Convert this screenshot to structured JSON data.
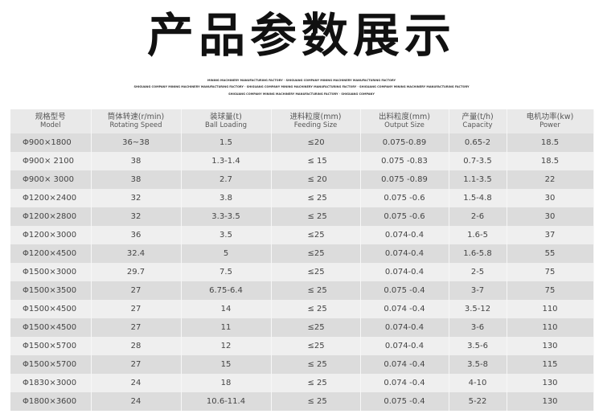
{
  "title": "产品参数展示",
  "tagline": [
    "MINING MACHINERY MANUFACTURING FACTORY · SHIGUANG COMPANY MINING MACHINERY MANUFACTURING FACTORY",
    "SHIGUANG COMPANY MINING MACHINERY MANUFACTURING FACTORY · SHIGUANG COMPANY MINING MACHINERY MANUFACTURING FACTORY · SHIGUANG COMPANY MINING MACHINERY MANUFACTURING FACTORY",
    "SHIGUANG COMPANY MINING MACHINERY MANUFACTURING FACTORY · SHIGUANG COMPANY"
  ],
  "headers": [
    {
      "cn": "规格型号",
      "en": "Model"
    },
    {
      "cn": "筒体转速(r/min)",
      "en": "Rotating Speed"
    },
    {
      "cn": "装球量(t)",
      "en": "Ball Loading"
    },
    {
      "cn": "进料粒度(mm)",
      "en": "Feeding Size"
    },
    {
      "cn": "出料粒度(mm)",
      "en": "Output Size"
    },
    {
      "cn": "产量(t/h)",
      "en": "Capacity"
    },
    {
      "cn": "电机功率(kw)",
      "en": "Power"
    }
  ],
  "rows": [
    [
      "Φ900×1800",
      "36~38",
      "1.5",
      "≤20",
      "0.075-0.89",
      "0.65-2",
      "18.5"
    ],
    [
      "Φ900× 2100",
      "38",
      "1.3-1.4",
      "≤ 15",
      "0.075 -0.83",
      "0.7-3.5",
      "18.5"
    ],
    [
      "Φ900× 3000",
      "38",
      "2.7",
      "≤ 20",
      "0.075 -0.89",
      "1.1-3.5",
      "22"
    ],
    [
      "Φ1200×2400",
      "32",
      "3.8",
      "≤ 25",
      "0.075 -0.6",
      "1.5-4.8",
      "30"
    ],
    [
      "Φ1200×2800",
      "32",
      "3.3-3.5",
      "≤ 25",
      "0.075 -0.6",
      "2-6",
      "30"
    ],
    [
      "Φ1200×3000",
      "36",
      "3.5",
      "≤25",
      "0.074-0.4",
      "1.6-5",
      "37"
    ],
    [
      "Φ1200×4500",
      "32.4",
      "5",
      "≤25",
      "0.074-0.4",
      "1.6-5.8",
      "55"
    ],
    [
      "Φ1500×3000",
      "29.7",
      "7.5",
      "≤25",
      "0.074-0.4",
      "2-5",
      "75"
    ],
    [
      "Φ1500×3500",
      "27",
      "6.75-6.4",
      "≤ 25",
      "0.075 -0.4",
      "3-7",
      "75"
    ],
    [
      "Φ1500×4500",
      "27",
      "14",
      "≤ 25",
      "0.074 -0.4",
      "3.5-12",
      "110"
    ],
    [
      "Φ1500×4500",
      "27",
      "11",
      "≤25",
      "0.074-0.4",
      "3-6",
      "110"
    ],
    [
      "Φ1500×5700",
      "28",
      "12",
      "≤25",
      "0.074-0.4",
      "3.5-6",
      "130"
    ],
    [
      "Φ1500×5700",
      "27",
      "15",
      "≤ 25",
      "0.074 -0.4",
      "3.5-8",
      "115"
    ],
    [
      "Φ1830×3000",
      "24",
      "18",
      "≤ 25",
      "0.074 -0.4",
      "4-10",
      "130"
    ],
    [
      "Φ1800×3600",
      "24",
      "10.6-11.4",
      "≤ 25",
      "0.075 -0.4",
      "5-22",
      "130"
    ]
  ]
}
